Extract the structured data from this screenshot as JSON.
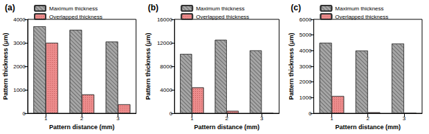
{
  "chart_data": [
    {
      "type": "bar",
      "title": "(a)",
      "categories": [
        "1",
        "2",
        "3"
      ],
      "xlabel": "Pattern distance (mm)",
      "ylabel": "Pattern thickness (μm)",
      "series": [
        {
          "name": "Maximum thickness",
          "color": "#a6a6a6",
          "values": [
            3700,
            3550,
            3050
          ]
        },
        {
          "name": "Overlapped thickness",
          "color": "#ec8c8c",
          "values": [
            3000,
            800,
            380
          ]
        }
      ],
      "ylim": [
        0,
        4000
      ],
      "yticks": [
        0,
        1000,
        2000,
        3000,
        4000
      ],
      "grid": false,
      "legend": "top-left"
    },
    {
      "type": "bar",
      "title": "(b)",
      "categories": [
        "1",
        "2",
        "3"
      ],
      "xlabel": "Pattern distance (mm)",
      "ylabel": "Pattern thickness (μm)",
      "series": [
        {
          "name": "Maximum thickness",
          "color": "#a6a6a6",
          "values": [
            10100,
            12500,
            10700
          ]
        },
        {
          "name": "Overlapped thickness",
          "color": "#ec8c8c",
          "values": [
            4400,
            400,
            80
          ]
        }
      ],
      "ylim": [
        0,
        16000
      ],
      "yticks": [
        0,
        4000,
        8000,
        12000,
        16000
      ],
      "grid": false,
      "legend": "top-left"
    },
    {
      "type": "bar",
      "title": "(c)",
      "categories": [
        "1",
        "2",
        "3"
      ],
      "xlabel": "Pattern distance (mm)",
      "ylabel": "Pattern thickness (μm)",
      "series": [
        {
          "name": "Maximum thickness",
          "color": "#a6a6a6",
          "values": [
            4500,
            4000,
            4450
          ]
        },
        {
          "name": "Overlapped thickness",
          "color": "#ec8c8c",
          "values": [
            1100,
            60,
            30
          ]
        }
      ],
      "ylim": [
        0,
        6000
      ],
      "yticks": [
        0,
        1000,
        2000,
        3000,
        4000,
        5000,
        6000
      ],
      "grid": false,
      "legend": "top-left"
    }
  ]
}
